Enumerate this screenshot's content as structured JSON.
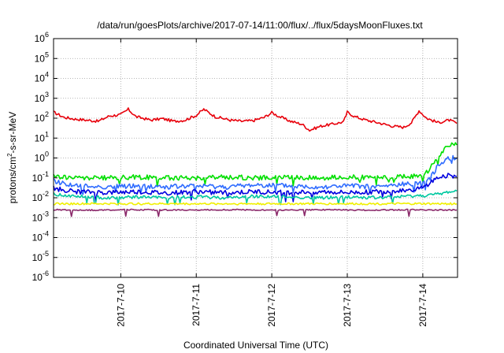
{
  "chart_data": {
    "type": "line",
    "title": "/data/run/goesPlots/archive/2017-07-14/11:00/flux/../flux/5daysMoonFluxes.txt",
    "xlabel": "Coordinated Universal Time (UTC)",
    "ylabel_parts": [
      "protons/cm",
      "2",
      "-s-sr-MeV"
    ],
    "x_domain": [
      2017.0709,
      2017.0714
    ],
    "xlim": [
      "2017-07-09 03:00",
      "2017-07-14 11:00"
    ],
    "x_ticks": [
      {
        "label": "2017-7-10",
        "day": 1.0
      },
      {
        "label": "2017-7-11",
        "day": 2.0
      },
      {
        "label": "2017-7-12",
        "day": 3.0
      },
      {
        "label": "2017-7-13",
        "day": 4.0
      },
      {
        "label": "2017-7-14",
        "day": 5.0
      }
    ],
    "y_scale": "log",
    "ylim": [
      1e-06,
      1000000.0
    ],
    "y_ticks": [
      {
        "base": "10",
        "exp": "-6",
        "value": 1e-06
      },
      {
        "base": "10",
        "exp": "-5",
        "value": 1e-05
      },
      {
        "base": "10",
        "exp": "-4",
        "value": 0.0001
      },
      {
        "base": "10",
        "exp": "-3",
        "value": 0.001
      },
      {
        "base": "10",
        "exp": "-2",
        "value": 0.01
      },
      {
        "base": "10",
        "exp": "-1",
        "value": 0.1
      },
      {
        "base": "10",
        "exp": "0",
        "value": 1
      },
      {
        "base": "10",
        "exp": "1",
        "value": 10
      },
      {
        "base": "10",
        "exp": "2",
        "value": 100
      },
      {
        "base": "10",
        "exp": "3",
        "value": 1000
      },
      {
        "base": "10",
        "exp": "4",
        "value": 10000
      },
      {
        "base": "10",
        "exp": "5",
        "value": 100000
      },
      {
        "base": "10",
        "exp": "6",
        "value": 1000000
      }
    ],
    "grid": true,
    "series": [
      {
        "color": "#e8000b",
        "points": [
          [
            0.11,
            200
          ],
          [
            0.25,
            110
          ],
          [
            0.4,
            90
          ],
          [
            0.55,
            80
          ],
          [
            0.7,
            70
          ],
          [
            0.85,
            130
          ],
          [
            1.0,
            150
          ],
          [
            1.1,
            280
          ],
          [
            1.2,
            120
          ],
          [
            1.4,
            80
          ],
          [
            1.55,
            95
          ],
          [
            1.7,
            70
          ],
          [
            1.85,
            80
          ],
          [
            2.0,
            140
          ],
          [
            2.1,
            280
          ],
          [
            2.25,
            120
          ],
          [
            2.45,
            80
          ],
          [
            2.6,
            70
          ],
          [
            2.75,
            75
          ],
          [
            2.9,
            110
          ],
          [
            3.0,
            190
          ],
          [
            3.1,
            120
          ],
          [
            3.25,
            70
          ],
          [
            3.4,
            50
          ],
          [
            3.5,
            25
          ],
          [
            3.65,
            40
          ],
          [
            3.8,
            50
          ],
          [
            3.95,
            65
          ],
          [
            4.0,
            200
          ],
          [
            4.1,
            120
          ],
          [
            4.25,
            80
          ],
          [
            4.4,
            60
          ],
          [
            4.6,
            40
          ],
          [
            4.75,
            35
          ],
          [
            4.85,
            60
          ],
          [
            4.95,
            240
          ],
          [
            5.05,
            100
          ],
          [
            5.2,
            60
          ],
          [
            5.35,
            80
          ],
          [
            5.45,
            55
          ]
        ]
      },
      {
        "color": "#00e000",
        "points": [
          [
            0.11,
            0.12
          ],
          [
            0.4,
            0.1
          ],
          [
            0.8,
            0.1
          ],
          [
            1.2,
            0.11
          ],
          [
            1.6,
            0.1
          ],
          [
            2.0,
            0.1
          ],
          [
            2.4,
            0.11
          ],
          [
            2.8,
            0.1
          ],
          [
            3.2,
            0.11
          ],
          [
            3.6,
            0.1
          ],
          [
            4.0,
            0.11
          ],
          [
            4.4,
            0.1
          ],
          [
            4.8,
            0.12
          ],
          [
            5.0,
            0.13
          ],
          [
            5.1,
            0.3
          ],
          [
            5.2,
            1.2
          ],
          [
            5.3,
            3.0
          ],
          [
            5.4,
            5.0
          ],
          [
            5.45,
            4.5
          ]
        ]
      },
      {
        "color": "#2f6cff",
        "points": [
          [
            0.11,
            0.07
          ],
          [
            0.4,
            0.04
          ],
          [
            0.8,
            0.035
          ],
          [
            1.2,
            0.04
          ],
          [
            1.6,
            0.035
          ],
          [
            2.0,
            0.04
          ],
          [
            2.4,
            0.035
          ],
          [
            2.8,
            0.045
          ],
          [
            3.2,
            0.04
          ],
          [
            3.6,
            0.035
          ],
          [
            4.0,
            0.04
          ],
          [
            4.4,
            0.035
          ],
          [
            4.8,
            0.05
          ],
          [
            5.0,
            0.06
          ],
          [
            5.1,
            0.1
          ],
          [
            5.2,
            0.4
          ],
          [
            5.3,
            0.9
          ],
          [
            5.4,
            1.1
          ],
          [
            5.45,
            1.0
          ]
        ]
      },
      {
        "color": "#0000e0",
        "points": [
          [
            0.11,
            0.03
          ],
          [
            0.4,
            0.02
          ],
          [
            0.8,
            0.018
          ],
          [
            1.2,
            0.02
          ],
          [
            1.6,
            0.017
          ],
          [
            2.0,
            0.02
          ],
          [
            2.4,
            0.018
          ],
          [
            2.8,
            0.02
          ],
          [
            3.2,
            0.018
          ],
          [
            3.6,
            0.02
          ],
          [
            4.0,
            0.018
          ],
          [
            4.4,
            0.02
          ],
          [
            4.8,
            0.025
          ],
          [
            5.0,
            0.03
          ],
          [
            5.1,
            0.06
          ],
          [
            5.2,
            0.1
          ],
          [
            5.3,
            0.13
          ],
          [
            5.45,
            0.12
          ]
        ]
      },
      {
        "color": "#00c8a0",
        "points": [
          [
            0.11,
            0.015
          ],
          [
            0.4,
            0.012
          ],
          [
            0.8,
            0.01
          ],
          [
            1.2,
            0.011
          ],
          [
            1.6,
            0.01
          ],
          [
            2.0,
            0.011
          ],
          [
            2.4,
            0.01
          ],
          [
            2.8,
            0.012
          ],
          [
            3.2,
            0.011
          ],
          [
            3.6,
            0.01
          ],
          [
            4.0,
            0.011
          ],
          [
            4.4,
            0.01
          ],
          [
            4.8,
            0.012
          ],
          [
            5.0,
            0.013
          ],
          [
            5.2,
            0.015
          ],
          [
            5.35,
            0.02
          ],
          [
            5.45,
            0.022
          ]
        ]
      },
      {
        "color": "#f0f000",
        "points": [
          [
            0.11,
            0.005
          ],
          [
            1.0,
            0.005
          ],
          [
            2.0,
            0.005
          ],
          [
            3.0,
            0.005
          ],
          [
            4.0,
            0.005
          ],
          [
            5.0,
            0.005
          ],
          [
            5.45,
            0.005
          ]
        ]
      },
      {
        "color": "#8b2a6b",
        "points": [
          [
            0.11,
            0.0025
          ],
          [
            0.6,
            0.0024
          ],
          [
            1.2,
            0.0025
          ],
          [
            1.8,
            0.0024
          ],
          [
            2.4,
            0.0025
          ],
          [
            3.0,
            0.0024
          ],
          [
            3.6,
            0.0025
          ],
          [
            4.2,
            0.0024
          ],
          [
            4.8,
            0.0025
          ],
          [
            5.45,
            0.0024
          ]
        ]
      }
    ]
  }
}
